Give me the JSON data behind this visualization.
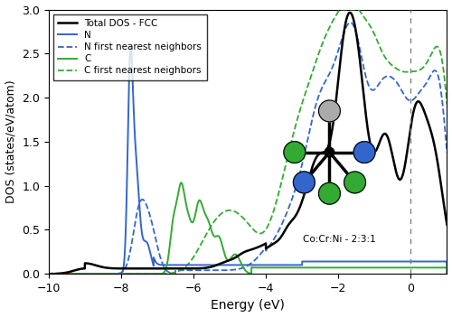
{
  "xlim": [
    -10,
    1
  ],
  "ylim": [
    0,
    3.0
  ],
  "xlabel": "Energy (eV)",
  "ylabel": "DOS (states/eV/atom)",
  "colors": {
    "total": "#000000",
    "N_solid": "#3366cc",
    "N_dashed": "#3366cc",
    "C_solid": "#33aa33",
    "C_dashed": "#33aa33"
  },
  "annotation_text": "Co:Cr:Ni - 2:3:1",
  "background": "#ffffff",
  "co_color": "#3366cc",
  "cr_color": "#33aa33",
  "ni_color": "#aaaaaa",
  "center_color": "#111111"
}
